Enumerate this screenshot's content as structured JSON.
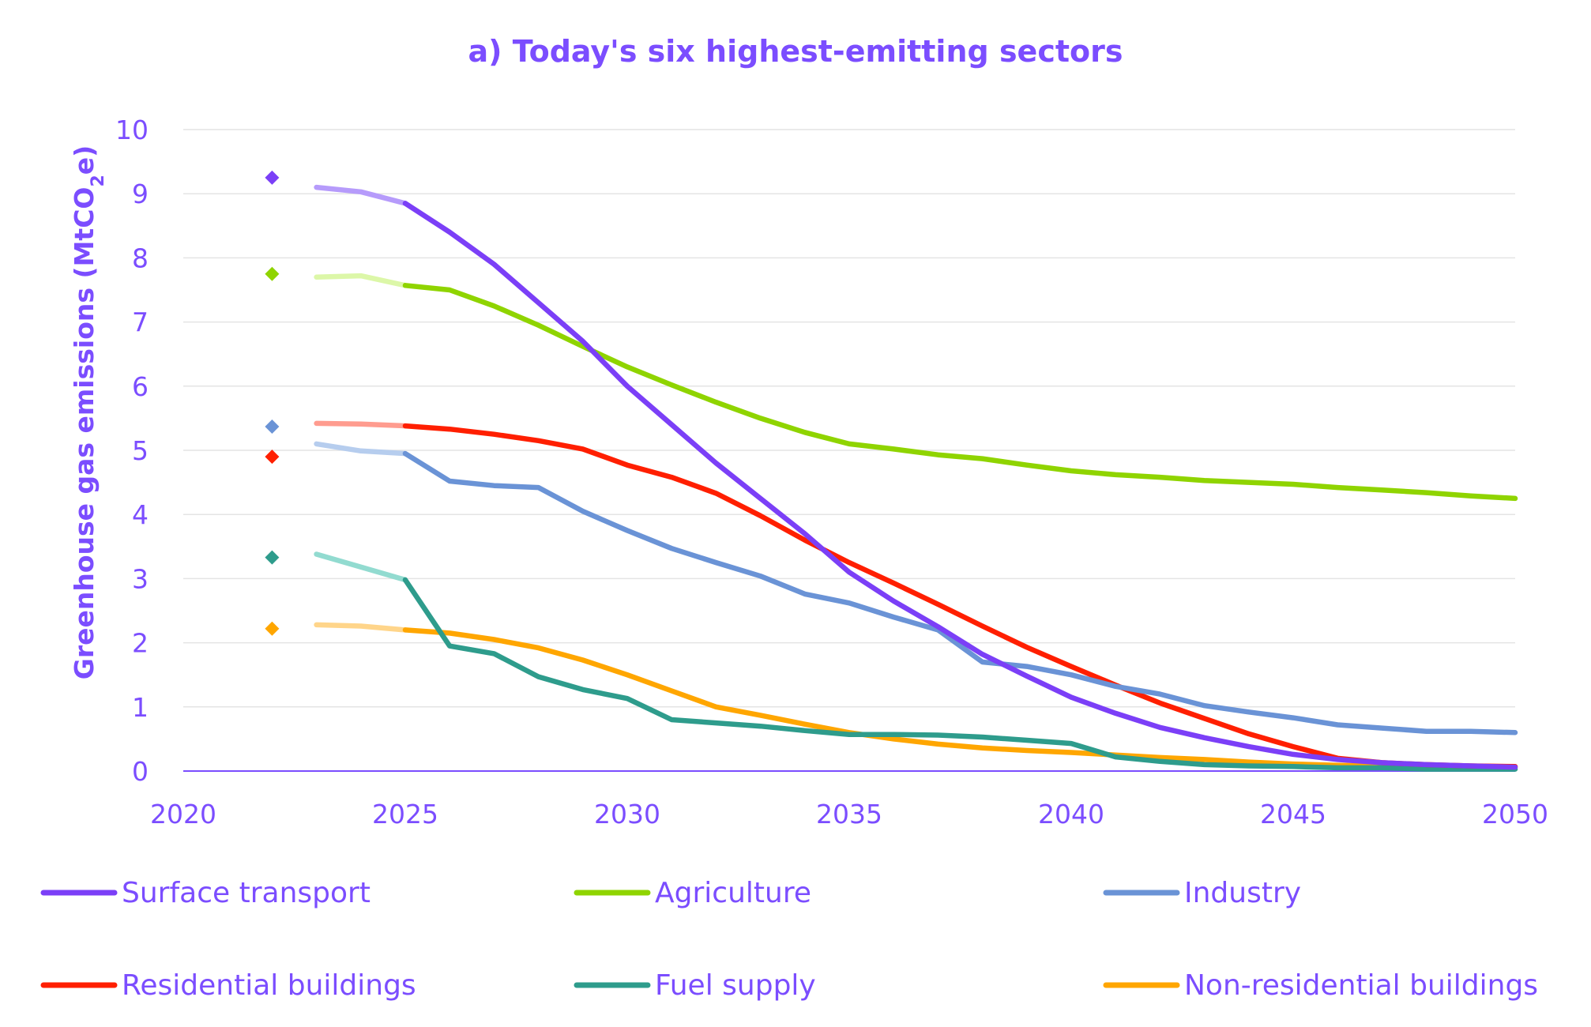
{
  "chart_data": {
    "type": "line",
    "title": "a) Today's six highest-emitting sectors",
    "ylabel": "Greenhouse gas emissions (MtCO2e)",
    "ylabel_parts": {
      "main": "Greenhouse gas emissions (MtCO",
      "sub": "2",
      "end": "e)"
    },
    "xlabel": "",
    "xlim": [
      2020,
      2050
    ],
    "ylim": [
      0,
      10
    ],
    "xticks": [
      "2020",
      "2025",
      "2030",
      "2035",
      "2040",
      "2045",
      "2050"
    ],
    "yticks": [
      "0",
      "1",
      "2",
      "3",
      "4",
      "5",
      "6",
      "7",
      "8",
      "9",
      "10"
    ],
    "grid": true,
    "legend_position": "bottom",
    "historical_marker_year": 2022,
    "series": [
      {
        "name": "Surface transport",
        "color": "#7b3ff7",
        "light_color": "#b69bfb",
        "marker_value": 9.25,
        "early": [
          [
            2023,
            9.1
          ],
          [
            2024,
            9.03
          ],
          [
            2025,
            8.85
          ]
        ],
        "projection": [
          [
            2025,
            8.85
          ],
          [
            2026,
            8.4
          ],
          [
            2027,
            7.9
          ],
          [
            2028,
            7.3
          ],
          [
            2029,
            6.7
          ],
          [
            2030,
            6.0
          ],
          [
            2031,
            5.4
          ],
          [
            2032,
            4.8
          ],
          [
            2033,
            4.25
          ],
          [
            2034,
            3.7
          ],
          [
            2035,
            3.1
          ],
          [
            2036,
            2.65
          ],
          [
            2037,
            2.25
          ],
          [
            2038,
            1.82
          ],
          [
            2039,
            1.48
          ],
          [
            2040,
            1.15
          ],
          [
            2041,
            0.9
          ],
          [
            2042,
            0.68
          ],
          [
            2043,
            0.52
          ],
          [
            2044,
            0.38
          ],
          [
            2045,
            0.26
          ],
          [
            2046,
            0.18
          ],
          [
            2047,
            0.13
          ],
          [
            2048,
            0.1
          ],
          [
            2049,
            0.08
          ],
          [
            2050,
            0.06
          ]
        ]
      },
      {
        "name": "Agriculture",
        "color": "#8fd400",
        "light_color": "#dcf7a8",
        "marker_value": 7.75,
        "early": [
          [
            2023,
            7.7
          ],
          [
            2024,
            7.72
          ],
          [
            2025,
            7.57
          ]
        ],
        "projection": [
          [
            2025,
            7.57
          ],
          [
            2026,
            7.5
          ],
          [
            2027,
            7.25
          ],
          [
            2028,
            6.95
          ],
          [
            2029,
            6.62
          ],
          [
            2030,
            6.3
          ],
          [
            2031,
            6.02
          ],
          [
            2032,
            5.75
          ],
          [
            2033,
            5.5
          ],
          [
            2034,
            5.28
          ],
          [
            2035,
            5.1
          ],
          [
            2036,
            5.02
          ],
          [
            2037,
            4.93
          ],
          [
            2038,
            4.87
          ],
          [
            2039,
            4.77
          ],
          [
            2040,
            4.68
          ],
          [
            2041,
            4.62
          ],
          [
            2042,
            4.58
          ],
          [
            2043,
            4.53
          ],
          [
            2044,
            4.5
          ],
          [
            2045,
            4.47
          ],
          [
            2046,
            4.42
          ],
          [
            2047,
            4.38
          ],
          [
            2048,
            4.34
          ],
          [
            2049,
            4.29
          ],
          [
            2050,
            4.25
          ]
        ]
      },
      {
        "name": "Industry",
        "color": "#6a93d6",
        "light_color": "#b6cdee",
        "marker_value": 5.37,
        "early": [
          [
            2023,
            5.1
          ],
          [
            2024,
            4.99
          ],
          [
            2025,
            4.95
          ]
        ],
        "projection": [
          [
            2025,
            4.95
          ],
          [
            2026,
            4.52
          ],
          [
            2027,
            4.45
          ],
          [
            2028,
            4.42
          ],
          [
            2029,
            4.05
          ],
          [
            2030,
            3.75
          ],
          [
            2031,
            3.47
          ],
          [
            2032,
            3.25
          ],
          [
            2033,
            3.04
          ],
          [
            2034,
            2.76
          ],
          [
            2035,
            2.62
          ],
          [
            2036,
            2.4
          ],
          [
            2037,
            2.2
          ],
          [
            2038,
            1.7
          ],
          [
            2039,
            1.63
          ],
          [
            2040,
            1.5
          ],
          [
            2041,
            1.32
          ],
          [
            2042,
            1.2
          ],
          [
            2043,
            1.02
          ],
          [
            2044,
            0.92
          ],
          [
            2045,
            0.83
          ],
          [
            2046,
            0.72
          ],
          [
            2047,
            0.67
          ],
          [
            2048,
            0.62
          ],
          [
            2049,
            0.62
          ],
          [
            2050,
            0.6
          ]
        ]
      },
      {
        "name": "Residential buildings",
        "color": "#ff1f00",
        "light_color": "#ff9c8f",
        "marker_value": 4.9,
        "early": [
          [
            2023,
            5.42
          ],
          [
            2024,
            5.41
          ],
          [
            2025,
            5.38
          ]
        ],
        "projection": [
          [
            2025,
            5.38
          ],
          [
            2026,
            5.33
          ],
          [
            2027,
            5.25
          ],
          [
            2028,
            5.15
          ],
          [
            2029,
            5.02
          ],
          [
            2030,
            4.77
          ],
          [
            2031,
            4.58
          ],
          [
            2032,
            4.33
          ],
          [
            2033,
            3.98
          ],
          [
            2034,
            3.6
          ],
          [
            2035,
            3.25
          ],
          [
            2036,
            2.93
          ],
          [
            2037,
            2.6
          ],
          [
            2038,
            2.26
          ],
          [
            2039,
            1.93
          ],
          [
            2040,
            1.63
          ],
          [
            2041,
            1.34
          ],
          [
            2042,
            1.06
          ],
          [
            2043,
            0.82
          ],
          [
            2044,
            0.58
          ],
          [
            2045,
            0.38
          ],
          [
            2046,
            0.2
          ],
          [
            2047,
            0.13
          ],
          [
            2048,
            0.1
          ],
          [
            2049,
            0.08
          ],
          [
            2050,
            0.07
          ]
        ]
      },
      {
        "name": "Fuel supply",
        "color": "#2e9c8c",
        "light_color": "#92dbd0",
        "marker_value": 3.33,
        "early": [
          [
            2023,
            3.38
          ],
          [
            2024,
            3.18
          ],
          [
            2025,
            2.98
          ]
        ],
        "projection": [
          [
            2025,
            2.98
          ],
          [
            2026,
            1.95
          ],
          [
            2027,
            1.83
          ],
          [
            2028,
            1.47
          ],
          [
            2029,
            1.27
          ],
          [
            2030,
            1.13
          ],
          [
            2031,
            0.8
          ],
          [
            2032,
            0.75
          ],
          [
            2033,
            0.7
          ],
          [
            2034,
            0.63
          ],
          [
            2035,
            0.57
          ],
          [
            2036,
            0.57
          ],
          [
            2037,
            0.56
          ],
          [
            2038,
            0.53
          ],
          [
            2039,
            0.48
          ],
          [
            2040,
            0.43
          ],
          [
            2041,
            0.22
          ],
          [
            2042,
            0.15
          ],
          [
            2043,
            0.1
          ],
          [
            2044,
            0.08
          ],
          [
            2045,
            0.07
          ],
          [
            2046,
            0.05
          ],
          [
            2047,
            0.05
          ],
          [
            2048,
            0.03
          ],
          [
            2049,
            0.03
          ],
          [
            2050,
            0.03
          ]
        ]
      },
      {
        "name": "Non-residential buildings",
        "color": "#ffa600",
        "light_color": "#ffd58a",
        "marker_value": 2.22,
        "early": [
          [
            2023,
            2.28
          ],
          [
            2024,
            2.26
          ],
          [
            2025,
            2.2
          ]
        ],
        "projection": [
          [
            2025,
            2.2
          ],
          [
            2026,
            2.15
          ],
          [
            2027,
            2.05
          ],
          [
            2028,
            1.92
          ],
          [
            2029,
            1.73
          ],
          [
            2030,
            1.5
          ],
          [
            2031,
            1.25
          ],
          [
            2032,
            1.0
          ],
          [
            2033,
            0.87
          ],
          [
            2034,
            0.73
          ],
          [
            2035,
            0.6
          ],
          [
            2036,
            0.5
          ],
          [
            2037,
            0.42
          ],
          [
            2038,
            0.36
          ],
          [
            2039,
            0.32
          ],
          [
            2040,
            0.29
          ],
          [
            2041,
            0.25
          ],
          [
            2042,
            0.21
          ],
          [
            2043,
            0.18
          ],
          [
            2044,
            0.14
          ],
          [
            2045,
            0.11
          ],
          [
            2046,
            0.09
          ],
          [
            2047,
            0.08
          ],
          [
            2048,
            0.07
          ],
          [
            2049,
            0.07
          ],
          [
            2050,
            0.06
          ]
        ]
      }
    ]
  }
}
